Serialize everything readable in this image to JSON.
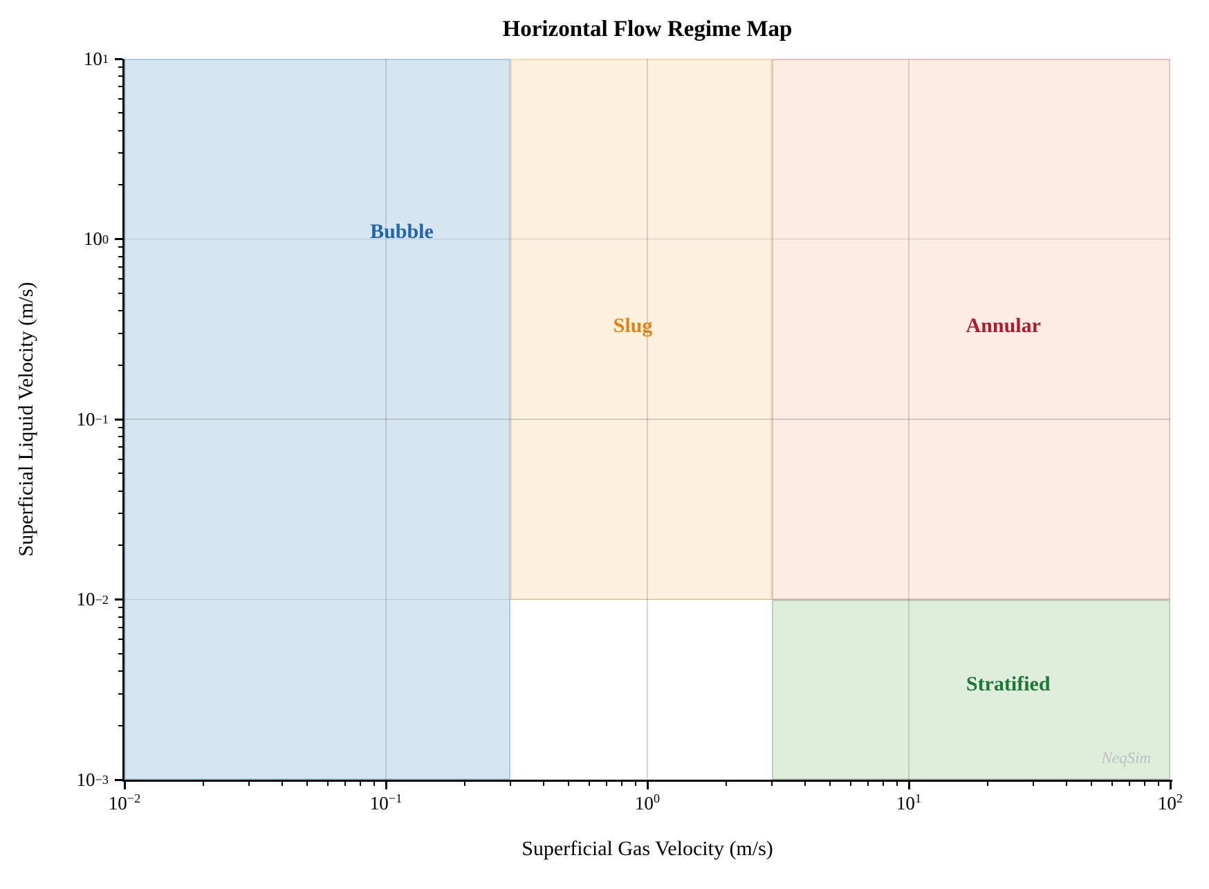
{
  "title": "Horizontal Flow Regime Map",
  "watermark": {
    "text": "NeqSim",
    "color": "#bdbdc7"
  },
  "chart_data": {
    "type": "area",
    "title": "Horizontal Flow Regime Map",
    "xlabel": "Superficial Gas Velocity (m/s)",
    "ylabel": "Superficial Liquid Velocity (m/s)",
    "xscale": "log",
    "yscale": "log",
    "xlim": [
      0.01,
      100
    ],
    "ylim": [
      0.001,
      10
    ],
    "grid": true,
    "x_tick_exponents": [
      -2,
      -1,
      0,
      1,
      2
    ],
    "y_tick_exponents": [
      1,
      0,
      -1,
      -2,
      -3
    ],
    "regions": [
      {
        "name": "Bubble",
        "vsg_range": [
          0.01,
          0.3
        ],
        "vsl_range": [
          0.001,
          10
        ],
        "label_color": "#2166ac",
        "fill_color": "#d4e6f1",
        "label_at": {
          "x": 0.115,
          "y": 1.1
        }
      },
      {
        "name": "Slug",
        "vsg_range": [
          0.3,
          3
        ],
        "vsl_range": [
          0.01,
          10
        ],
        "label_color": "#e08214",
        "fill_color": "#fbf1dd",
        "label_at": {
          "x": 0.88,
          "y": 0.33
        }
      },
      {
        "name": "Annular",
        "vsg_range": [
          3,
          100
        ],
        "vsl_range": [
          0.01,
          10
        ],
        "label_color": "#b2182b",
        "fill_color": "#fcece4",
        "label_at": {
          "x": 23,
          "y": 0.33
        }
      },
      {
        "name": "Stratified",
        "vsg_range": [
          3,
          100
        ],
        "vsl_range": [
          0.001,
          0.01
        ],
        "label_color": "#1b7837",
        "fill_color": "#dfeeda",
        "label_at": {
          "x": 24,
          "y": 0.0034
        }
      }
    ]
  }
}
